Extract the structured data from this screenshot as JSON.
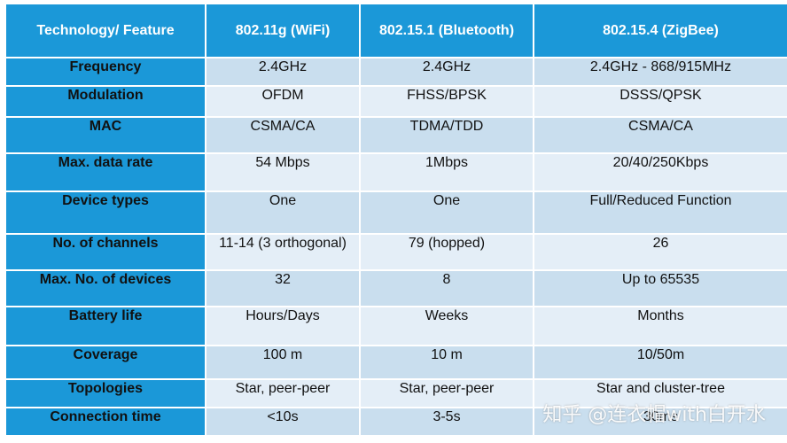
{
  "table": {
    "headers": [
      "Technology/ Feature",
      "802.11g (WiFi)",
      "802.15.1 (Bluetooth)",
      "802.15.4 (ZigBee)"
    ],
    "rows": [
      [
        "Frequency",
        "2.4GHz",
        "2.4GHz",
        "2.4GHz - 868/915MHz"
      ],
      [
        "Modulation",
        "OFDM",
        "FHSS/BPSK",
        "DSSS/QPSK"
      ],
      [
        "MAC",
        "CSMA/CA",
        "TDMA/TDD",
        "CSMA/CA"
      ],
      [
        "Max. data rate",
        "54 Mbps",
        "1Mbps",
        "20/40/250Kbps"
      ],
      [
        "Device types",
        "One",
        "One",
        "Full/Reduced Function"
      ],
      [
        "No. of channels",
        "11-14 (3 orthogonal)",
        "79 (hopped)",
        "26"
      ],
      [
        "Max. No. of devices",
        "32",
        "8",
        "Up to 65535"
      ],
      [
        "Battery life",
        "Hours/Days",
        "Weeks",
        "Months"
      ],
      [
        "Coverage",
        "100 m",
        "10 m",
        "10/50m"
      ],
      [
        "Topologies",
        "Star, peer-peer",
        "Star, peer-peer",
        "Star and cluster-tree"
      ],
      [
        "Connection time",
        "<10s",
        "3-5s",
        "30ms"
      ]
    ]
  },
  "watermark": "知乎 @连衣帽with白开水",
  "colors": {
    "header_bg": "#1b98d8",
    "row_odd": "#c9deee",
    "row_even": "#e4eef7"
  }
}
